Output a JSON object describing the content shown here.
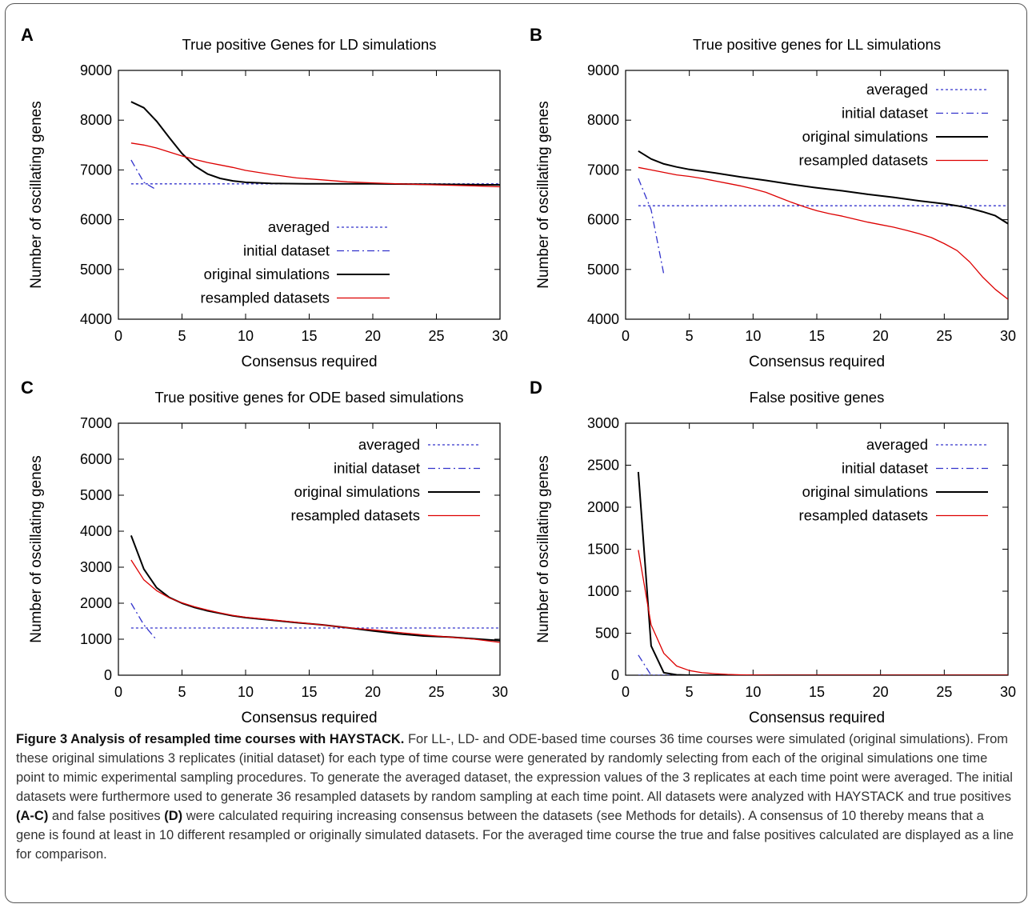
{
  "chart_data": [
    {
      "panel": "A",
      "type": "line",
      "title": "True positive Genes for LD simulations",
      "xlabel": "Consensus required",
      "ylabel": "Number of oscillating genes",
      "xlim": [
        0,
        30
      ],
      "ylim": [
        4000,
        9000
      ],
      "xticks": [
        0,
        5,
        10,
        15,
        20,
        25,
        30
      ],
      "yticks": [
        4000,
        5000,
        6000,
        7000,
        8000,
        9000
      ],
      "legend": "bottom-center",
      "series": [
        {
          "name": "averaged",
          "color": "#3333cc",
          "style": "dotted",
          "points": [
            [
              1,
              6720
            ],
            [
              30,
              6720
            ]
          ]
        },
        {
          "name": "initial dataset",
          "color": "#3333cc",
          "style": "dashdot",
          "points": [
            [
              1,
              7200
            ],
            [
              2,
              6750
            ],
            [
              3,
              6600
            ]
          ]
        },
        {
          "name": "original simulations",
          "color": "#000000",
          "style": "solid",
          "points": [
            [
              1,
              8370
            ],
            [
              2,
              8250
            ],
            [
              3,
              7980
            ],
            [
              4,
              7650
            ],
            [
              5,
              7330
            ],
            [
              6,
              7080
            ],
            [
              7,
              6920
            ],
            [
              8,
              6830
            ],
            [
              9,
              6780
            ],
            [
              10,
              6750
            ],
            [
              12,
              6730
            ],
            [
              15,
              6720
            ],
            [
              20,
              6720
            ],
            [
              25,
              6710
            ],
            [
              30,
              6700
            ]
          ]
        },
        {
          "name": "resampled datasets",
          "color": "#dd0000",
          "style": "solid",
          "points": [
            [
              1,
              7540
            ],
            [
              2,
              7500
            ],
            [
              3,
              7440
            ],
            [
              4,
              7360
            ],
            [
              5,
              7280
            ],
            [
              6,
              7210
            ],
            [
              7,
              7150
            ],
            [
              8,
              7100
            ],
            [
              9,
              7050
            ],
            [
              10,
              6990
            ],
            [
              12,
              6910
            ],
            [
              14,
              6840
            ],
            [
              16,
              6800
            ],
            [
              18,
              6760
            ],
            [
              20,
              6740
            ],
            [
              22,
              6720
            ],
            [
              25,
              6700
            ],
            [
              28,
              6680
            ],
            [
              30,
              6660
            ]
          ]
        }
      ]
    },
    {
      "panel": "B",
      "type": "line",
      "title": "True positive genes for LL simulations",
      "xlabel": "Consensus required",
      "ylabel": "Number of oscillating genes",
      "xlim": [
        0,
        30
      ],
      "ylim": [
        4000,
        9000
      ],
      "xticks": [
        0,
        5,
        10,
        15,
        20,
        25,
        30
      ],
      "yticks": [
        4000,
        5000,
        6000,
        7000,
        8000,
        9000
      ],
      "legend": "top-right",
      "series": [
        {
          "name": "averaged",
          "color": "#3333cc",
          "style": "dotted",
          "points": [
            [
              1,
              6280
            ],
            [
              30,
              6280
            ]
          ]
        },
        {
          "name": "initial dataset",
          "color": "#3333cc",
          "style": "dashdot",
          "points": [
            [
              1,
              6830
            ],
            [
              2,
              6200
            ],
            [
              3,
              4900
            ]
          ]
        },
        {
          "name": "original simulations",
          "color": "#000000",
          "style": "solid",
          "points": [
            [
              1,
              7380
            ],
            [
              2,
              7220
            ],
            [
              3,
              7120
            ],
            [
              4,
              7060
            ],
            [
              5,
              7010
            ],
            [
              7,
              6940
            ],
            [
              9,
              6860
            ],
            [
              11,
              6790
            ],
            [
              13,
              6710
            ],
            [
              15,
              6640
            ],
            [
              17,
              6580
            ],
            [
              19,
              6510
            ],
            [
              21,
              6450
            ],
            [
              23,
              6380
            ],
            [
              25,
              6320
            ],
            [
              26,
              6280
            ],
            [
              27,
              6230
            ],
            [
              28,
              6160
            ],
            [
              29,
              6080
            ],
            [
              30,
              5920
            ]
          ]
        },
        {
          "name": "resampled datasets",
          "color": "#dd0000",
          "style": "solid",
          "points": [
            [
              1,
              7050
            ],
            [
              2,
              7000
            ],
            [
              3,
              6950
            ],
            [
              4,
              6900
            ],
            [
              5,
              6870
            ],
            [
              6,
              6830
            ],
            [
              7,
              6780
            ],
            [
              8,
              6730
            ],
            [
              9,
              6680
            ],
            [
              10,
              6620
            ],
            [
              11,
              6550
            ],
            [
              12,
              6450
            ],
            [
              13,
              6350
            ],
            [
              14,
              6260
            ],
            [
              15,
              6180
            ],
            [
              16,
              6120
            ],
            [
              17,
              6070
            ],
            [
              18,
              6010
            ],
            [
              19,
              5950
            ],
            [
              20,
              5900
            ],
            [
              21,
              5850
            ],
            [
              22,
              5790
            ],
            [
              23,
              5720
            ],
            [
              24,
              5640
            ],
            [
              25,
              5520
            ],
            [
              26,
              5380
            ],
            [
              27,
              5150
            ],
            [
              28,
              4850
            ],
            [
              29,
              4600
            ],
            [
              30,
              4400
            ]
          ]
        }
      ]
    },
    {
      "panel": "C",
      "type": "line",
      "title": "True positive genes for ODE based simulations",
      "xlabel": "Consensus required",
      "ylabel": "Number of oscillating genes",
      "xlim": [
        0,
        30
      ],
      "ylim": [
        0,
        7000
      ],
      "xticks": [
        0,
        5,
        10,
        15,
        20,
        25,
        30
      ],
      "yticks": [
        0,
        1000,
        2000,
        3000,
        4000,
        5000,
        6000,
        7000
      ],
      "legend": "top-right",
      "series": [
        {
          "name": "averaged",
          "color": "#3333cc",
          "style": "dotted",
          "points": [
            [
              1,
              1310
            ],
            [
              30,
              1310
            ]
          ]
        },
        {
          "name": "initial dataset",
          "color": "#3333cc",
          "style": "dashdot",
          "points": [
            [
              1,
              2000
            ],
            [
              2,
              1400
            ],
            [
              3,
              980
            ]
          ]
        },
        {
          "name": "original simulations",
          "color": "#000000",
          "style": "solid",
          "points": [
            [
              1,
              3880
            ],
            [
              2,
              2950
            ],
            [
              3,
              2430
            ],
            [
              4,
              2160
            ],
            [
              5,
              2000
            ],
            [
              6,
              1880
            ],
            [
              7,
              1790
            ],
            [
              8,
              1720
            ],
            [
              9,
              1650
            ],
            [
              10,
              1600
            ],
            [
              12,
              1530
            ],
            [
              14,
              1460
            ],
            [
              16,
              1400
            ],
            [
              18,
              1320
            ],
            [
              20,
              1230
            ],
            [
              22,
              1150
            ],
            [
              24,
              1090
            ],
            [
              26,
              1060
            ],
            [
              28,
              1010
            ],
            [
              30,
              960
            ]
          ]
        },
        {
          "name": "resampled datasets",
          "color": "#dd0000",
          "style": "solid",
          "points": [
            [
              1,
              3200
            ],
            [
              2,
              2650
            ],
            [
              3,
              2350
            ],
            [
              4,
              2150
            ],
            [
              5,
              2010
            ],
            [
              6,
              1900
            ],
            [
              7,
              1810
            ],
            [
              8,
              1730
            ],
            [
              9,
              1660
            ],
            [
              10,
              1610
            ],
            [
              12,
              1540
            ],
            [
              14,
              1470
            ],
            [
              16,
              1400
            ],
            [
              18,
              1320
            ],
            [
              20,
              1260
            ],
            [
              22,
              1190
            ],
            [
              24,
              1120
            ],
            [
              26,
              1060
            ],
            [
              28,
              1000
            ],
            [
              30,
              910
            ]
          ]
        }
      ]
    },
    {
      "panel": "D",
      "type": "line",
      "title": "False positive genes",
      "xlabel": "Consensus required",
      "ylabel": "Number of oscillating genes",
      "xlim": [
        0,
        30
      ],
      "ylim": [
        0,
        3000
      ],
      "xticks": [
        0,
        5,
        10,
        15,
        20,
        25,
        30
      ],
      "yticks": [
        0,
        500,
        1000,
        1500,
        2000,
        2500,
        3000
      ],
      "legend": "top-right",
      "series": [
        {
          "name": "averaged",
          "color": "#3333cc",
          "style": "dotted",
          "points": [
            [
              1,
              0
            ],
            [
              30,
              0
            ]
          ]
        },
        {
          "name": "initial dataset",
          "color": "#3333cc",
          "style": "dashdot",
          "points": [
            [
              1,
              240
            ],
            [
              2,
              0
            ]
          ]
        },
        {
          "name": "original simulations",
          "color": "#000000",
          "style": "solid",
          "points": [
            [
              1,
              2420
            ],
            [
              2,
              350
            ],
            [
              3,
              30
            ],
            [
              4,
              5
            ],
            [
              5,
              0
            ],
            [
              10,
              0
            ],
            [
              30,
              0
            ]
          ]
        },
        {
          "name": "resampled datasets",
          "color": "#dd0000",
          "style": "solid",
          "points": [
            [
              1,
              1490
            ],
            [
              2,
              600
            ],
            [
              3,
              260
            ],
            [
              4,
              110
            ],
            [
              5,
              55
            ],
            [
              6,
              30
            ],
            [
              7,
              18
            ],
            [
              8,
              10
            ],
            [
              9,
              5
            ],
            [
              10,
              2
            ],
            [
              12,
              0
            ],
            [
              30,
              0
            ]
          ]
        }
      ]
    }
  ],
  "caption": {
    "label": "Figure 3 Analysis of resampled time courses with HAYSTACK.",
    "part1": " For LL-, LD- and ODE-based time courses 36 time courses were simulated (original simulations). From these original simulations 3 replicates (initial dataset) for each type of time course were generated by randomly selecting from each of the original simulations one time point to mimic experimental sampling procedures. To generate the averaged dataset, the expression values of the 3 replicates at each time point were averaged. The initial datasets were furthermore used to generate 36 resampled datasets by random sampling at each time point. All datasets were analyzed with HAYSTACK and true positives ",
    "ref1": "(A-C)",
    "part2": " and false positives ",
    "ref2": "(D)",
    "part3": " were calculated requiring increasing consensus between the datasets (see Methods for details). A consensus of 10 thereby means that a gene is found at least in 10 different resampled or originally simulated datasets. For the averaged time course the true and false positives calculated are displayed as a line for comparison."
  }
}
